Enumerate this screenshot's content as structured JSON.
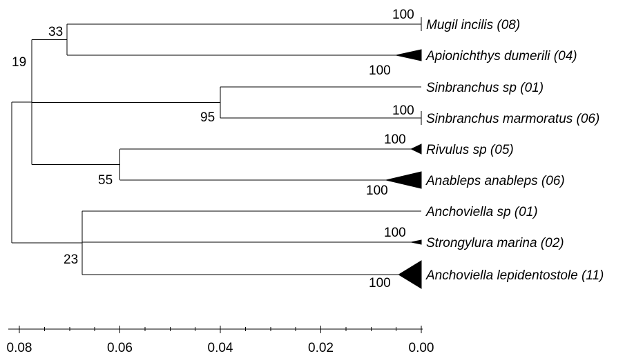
{
  "tree": {
    "nodes": [
      {
        "id": "root",
        "depth": 0.0815
      },
      {
        "id": "n19",
        "depth": 0.0775,
        "support": "19"
      },
      {
        "id": "n33",
        "depth": 0.0705,
        "support": "33"
      },
      {
        "id": "n95",
        "depth": 0.04,
        "support": "95"
      },
      {
        "id": "n55",
        "depth": 0.06,
        "support": "55"
      },
      {
        "id": "n23",
        "depth": 0.0675,
        "support": "23"
      }
    ],
    "tips": [
      {
        "id": "mugil",
        "label": "Mugil incilis (08)",
        "parent": "n33",
        "collapsed": true,
        "clade_depth": 0.0001,
        "support": "100"
      },
      {
        "id": "apionichthys",
        "label": "Apionichthys dumerili (04)",
        "parent": "n33",
        "collapsed": true,
        "clade_depth": 0.005,
        "support": "100"
      },
      {
        "id": "sinbranchus",
        "label": "Sinbranchus sp (01)",
        "parent": "n95",
        "collapsed": false
      },
      {
        "id": "sinmarm",
        "label": "Sinbranchus marmoratus (06)",
        "parent": "n95",
        "collapsed": true,
        "clade_depth": 0.0001,
        "support": "100"
      },
      {
        "id": "rivulus",
        "label": "Rivulus sp (05)",
        "parent": "n55",
        "collapsed": true,
        "clade_depth": 0.002,
        "support": "100"
      },
      {
        "id": "anableps",
        "label": "Anableps anableps (06)",
        "parent": "n55",
        "collapsed": true,
        "clade_depth": 0.007,
        "support": "100"
      },
      {
        "id": "anchsp",
        "label": "Anchoviella sp (01)",
        "parent": "n23",
        "collapsed": false
      },
      {
        "id": "strongylura",
        "label": "Strongylura marina (02)",
        "parent": "n23",
        "collapsed": true,
        "clade_depth": 0.002,
        "support": "100"
      },
      {
        "id": "anchlep",
        "label": "Anchoviella lepidentostole (11)",
        "parent": "n23",
        "collapsed": true,
        "clade_depth": 0.0045,
        "support": "100"
      }
    ],
    "edges": [
      {
        "from": "root",
        "to": "n19"
      },
      {
        "from": "root",
        "to": "n23"
      },
      {
        "from": "n19",
        "to": "n33"
      },
      {
        "from": "n19",
        "to": "n95"
      },
      {
        "from": "n19",
        "to": "n55"
      }
    ]
  },
  "axis": {
    "ticks": [
      "0.08",
      "0.06",
      "0.04",
      "0.02",
      "0.00"
    ],
    "tick_values": [
      0.08,
      0.06,
      0.04,
      0.02,
      0.0
    ],
    "direction": "decreasing-left-to-right"
  },
  "colors": {
    "line": "#000000",
    "background": "#ffffff"
  }
}
